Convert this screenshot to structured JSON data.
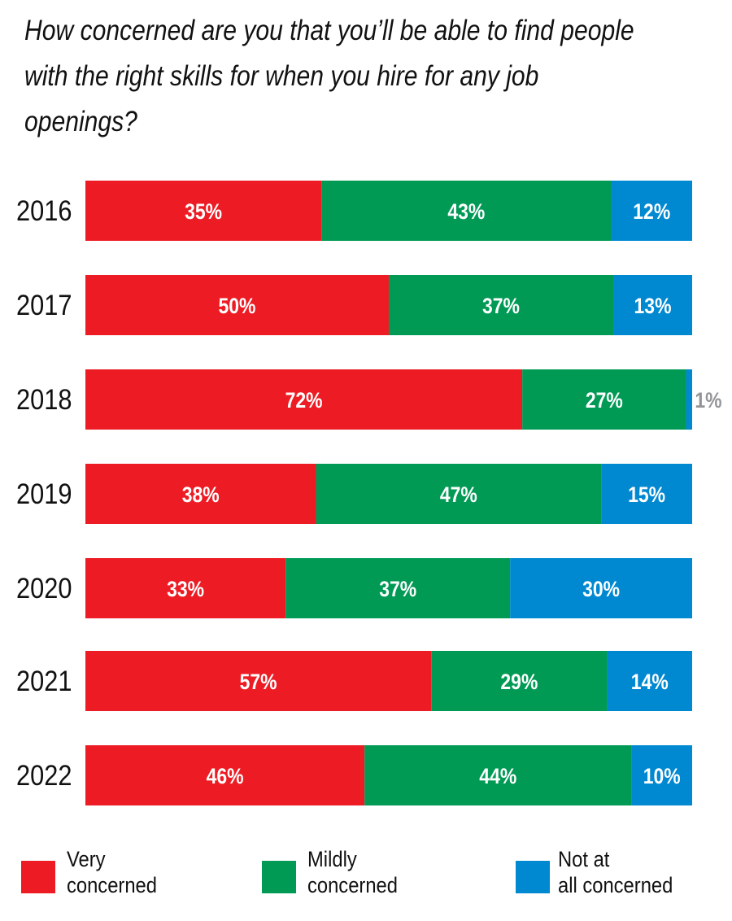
{
  "chart_data": {
    "type": "bar",
    "orientation": "horizontal",
    "stacked": true,
    "title": "How concerned are you that you’ll be able to find people with the right skills for when you hire for any job openings?",
    "categories": [
      "2016",
      "2017",
      "2018",
      "2019",
      "2020",
      "2021",
      "2022"
    ],
    "series": [
      {
        "name": "Very concerned",
        "color": "#ED1C24",
        "values": [
          35,
          50,
          72,
          38,
          33,
          57,
          46
        ]
      },
      {
        "name": "Mildly concerned",
        "color": "#009A55",
        "values": [
          43,
          37,
          27,
          47,
          37,
          29,
          44
        ]
      },
      {
        "name": "Not at all concerned",
        "color": "#0088D1",
        "values": [
          12,
          13,
          1,
          15,
          30,
          14,
          10
        ]
      }
    ],
    "value_suffix": "%",
    "grid": false,
    "legend_placement": "bottom",
    "outside_label_color": "#939598"
  },
  "legend": [
    {
      "label": "Very\nconcerned"
    },
    {
      "label": "Mildly\nconcerned"
    },
    {
      "label": "Not at\nall concerned"
    }
  ]
}
